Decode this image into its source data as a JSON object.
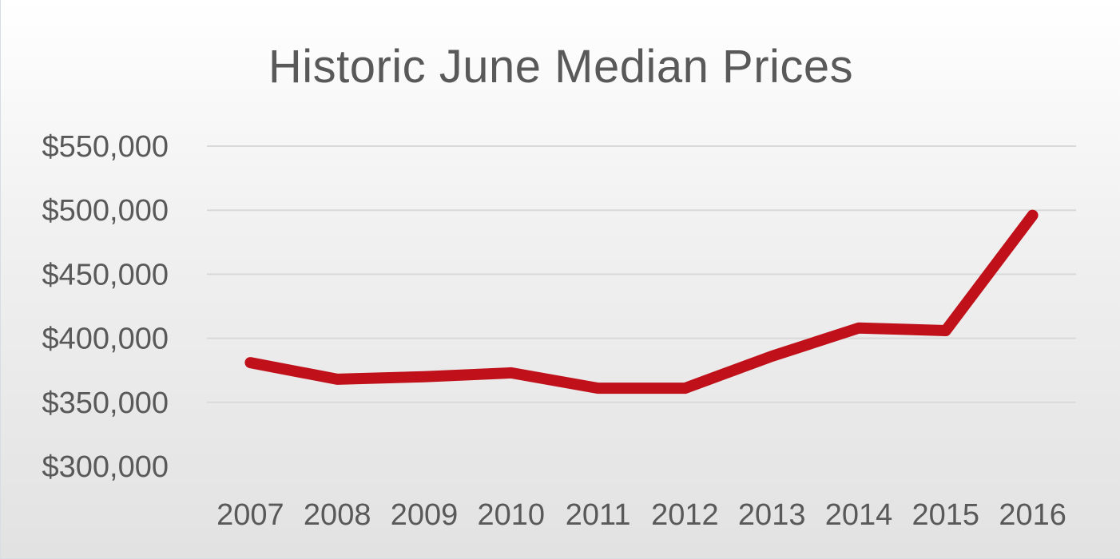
{
  "chart_data": {
    "type": "line",
    "title": "Historic June Median Prices",
    "xlabel": "",
    "ylabel": "",
    "categories": [
      "2007",
      "2008",
      "2009",
      "2010",
      "2011",
      "2012",
      "2013",
      "2014",
      "2015",
      "2016"
    ],
    "series": [
      {
        "values": [
          381000,
          368000,
          370000,
          373000,
          361000,
          361000,
          386000,
          408000,
          406000,
          496000
        ],
        "color": "#c0101a"
      }
    ],
    "ylim": [
      300000,
      550000
    ],
    "yticks": [
      300000,
      350000,
      400000,
      450000,
      500000,
      550000
    ],
    "ytick_labels": [
      "$300,000",
      "$350,000",
      "$400,000",
      "$450,000",
      "$500,000",
      "$550,000"
    ],
    "grid": true,
    "legend": "none"
  }
}
